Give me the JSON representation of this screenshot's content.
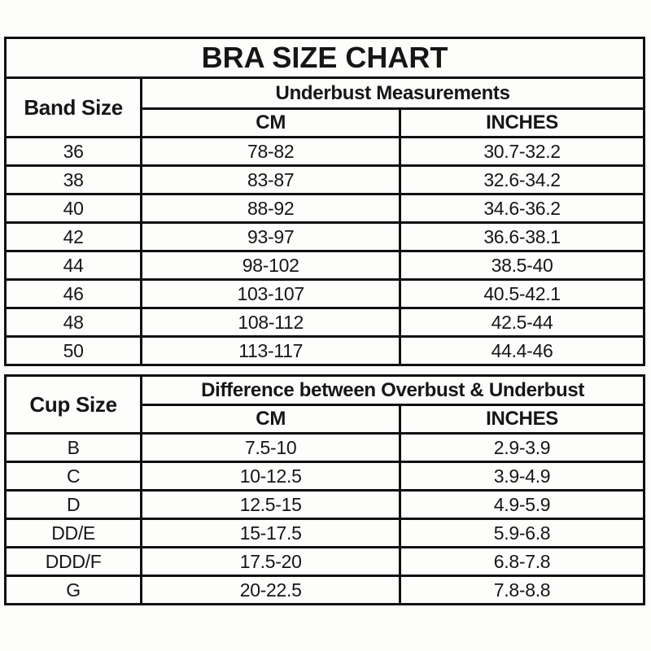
{
  "colors": {
    "header_bg": "#f9f5d7",
    "cell_bg": "#fdfdfc",
    "border": "#101010",
    "page_bg": "#fcfcfa",
    "text": "#161616"
  },
  "band_table": {
    "title": "BRA SIZE CHART",
    "corner_header": "Band Size",
    "group_header": "Underbust Measurements",
    "col_headers": [
      "CM",
      "INCHES"
    ],
    "rows": [
      {
        "band": "36",
        "cm": "78-82",
        "inches": "30.7-32.2"
      },
      {
        "band": "38",
        "cm": "83-87",
        "inches": "32.6-34.2"
      },
      {
        "band": "40",
        "cm": "88-92",
        "inches": "34.6-36.2"
      },
      {
        "band": "42",
        "cm": "93-97",
        "inches": "36.6-38.1"
      },
      {
        "band": "44",
        "cm": "98-102",
        "inches": "38.5-40"
      },
      {
        "band": "46",
        "cm": "103-107",
        "inches": "40.5-42.1"
      },
      {
        "band": "48",
        "cm": "108-112",
        "inches": "42.5-44"
      },
      {
        "band": "50",
        "cm": "113-117",
        "inches": "44.4-46"
      }
    ]
  },
  "cup_table": {
    "corner_header": "Cup Size",
    "group_header": "Difference between Overbust & Underbust",
    "col_headers": [
      "CM",
      "INCHES"
    ],
    "rows": [
      {
        "cup": "B",
        "cm": "7.5-10",
        "inches": "2.9-3.9"
      },
      {
        "cup": "C",
        "cm": "10-12.5",
        "inches": "3.9-4.9"
      },
      {
        "cup": "D",
        "cm": "12.5-15",
        "inches": "4.9-5.9"
      },
      {
        "cup": "DD/E",
        "cm": "15-17.5",
        "inches": "5.9-6.8"
      },
      {
        "cup": "DDD/F",
        "cm": "17.5-20",
        "inches": "6.8-7.8"
      },
      {
        "cup": "G",
        "cm": "20-22.5",
        "inches": "7.8-8.8"
      }
    ]
  }
}
